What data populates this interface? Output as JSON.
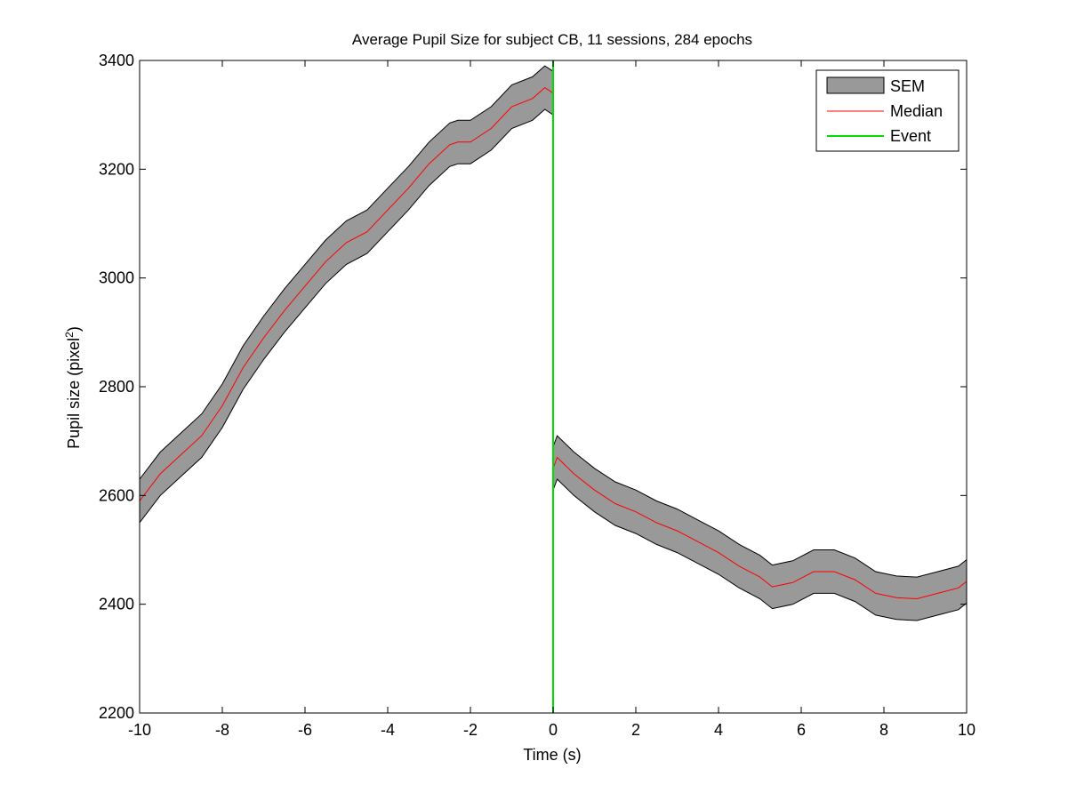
{
  "chart_data": {
    "type": "area",
    "title": "Average Pupil Size for subject CB, 11 sessions, 284 epochs",
    "xlabel": "Time (s)",
    "ylabel": "Pupil size (pixel",
    "ylabel_superscript": "2",
    "ylabel_suffix": ")",
    "xlim": [
      -10,
      10
    ],
    "ylim": [
      2200,
      3400
    ],
    "xticks": [
      -10,
      -8,
      -6,
      -4,
      -2,
      0,
      2,
      4,
      6,
      8,
      10
    ],
    "yticks": [
      2200,
      2400,
      2600,
      2800,
      3000,
      3200,
      3400
    ],
    "legend": {
      "position": "top-right",
      "entries": [
        {
          "label": "SEM",
          "kind": "patch",
          "color": "#999999"
        },
        {
          "label": "Median",
          "kind": "line",
          "color": "#ff0000"
        },
        {
          "label": "Event",
          "kind": "line",
          "color": "#00dd00"
        }
      ]
    },
    "series": [
      {
        "name": "Median",
        "color": "#ff0000",
        "segments": [
          {
            "x": [
              -10,
              -9.5,
              -9,
              -8.5,
              -8,
              -7.5,
              -7,
              -6.5,
              -6,
              -5.5,
              -5,
              -4.5,
              -4,
              -3.5,
              -3,
              -2.5,
              -2.3,
              -2,
              -1.5,
              -1,
              -0.5,
              -0.2,
              0
            ],
            "y": [
              2590,
              2640,
              2675,
              2710,
              2765,
              2835,
              2890,
              2940,
              2985,
              3030,
              3065,
              3085,
              3125,
              3165,
              3210,
              3245,
              3250,
              3250,
              3275,
              3315,
              3330,
              3350,
              3340
            ]
          },
          {
            "x": [
              0,
              0.1,
              0.5,
              1,
              1.5,
              2,
              2.5,
              3,
              3.5,
              4,
              4.5,
              5,
              5.3,
              5.8,
              6.3,
              6.8,
              7.3,
              7.8,
              8.3,
              8.8,
              9.3,
              9.8,
              10
            ],
            "y": [
              2650,
              2670,
              2640,
              2610,
              2585,
              2570,
              2550,
              2535,
              2515,
              2495,
              2470,
              2450,
              2432,
              2440,
              2460,
              2460,
              2445,
              2420,
              2412,
              2410,
              2420,
              2430,
              2442
            ]
          }
        ]
      },
      {
        "name": "SEM",
        "color": "#999999",
        "half_width": 40
      }
    ],
    "event": {
      "name": "Event",
      "x": 0,
      "color": "#00dd00"
    }
  }
}
